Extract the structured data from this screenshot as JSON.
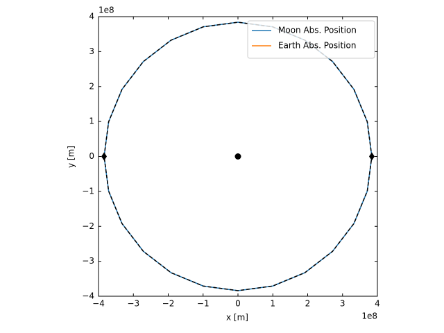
{
  "chart_data": {
    "type": "line",
    "xlabel": "x [m]",
    "ylabel": "y [m]",
    "x_offset_label": "1e8",
    "y_offset_label": "1e8",
    "xlim": [
      -4,
      4
    ],
    "ylim": [
      -4,
      4
    ],
    "xticks": [
      {
        "value": -4,
        "label": "−4"
      },
      {
        "value": -3,
        "label": "−3"
      },
      {
        "value": -2,
        "label": "−2"
      },
      {
        "value": -1,
        "label": "−1"
      },
      0,
      1,
      2,
      3,
      4
    ],
    "yticks": [
      {
        "value": -4,
        "label": "−4"
      },
      {
        "value": -3,
        "label": "−3"
      },
      {
        "value": -2,
        "label": "−2"
      },
      {
        "value": -1,
        "label": "−1"
      },
      0,
      1,
      2,
      3,
      4
    ],
    "legend": "upper right",
    "series": [
      {
        "name": "Moon Abs. Position",
        "color": "#1f77b4",
        "x": [
          3.84,
          3.709,
          3.326,
          2.715,
          1.92,
          0.994,
          0,
          -0.994,
          -1.92,
          -2.715,
          -3.326,
          -3.709,
          -3.84,
          -3.709,
          -3.326,
          -2.715,
          -1.92,
          -0.994,
          0,
          0.994,
          1.92,
          2.715,
          3.326,
          3.709,
          3.84
        ],
        "values": [
          0,
          0.994,
          1.92,
          2.715,
          3.326,
          3.709,
          3.84,
          3.709,
          3.326,
          2.715,
          1.92,
          0.994,
          0,
          -0.994,
          -1.92,
          -2.715,
          -3.326,
          -3.709,
          -3.84,
          -3.709,
          -3.326,
          -2.715,
          -1.92,
          -0.994,
          0
        ]
      },
      {
        "name": "Earth Abs. Position",
        "color": "#ff7f0e",
        "x": [
          0.047,
          0.041,
          0.024,
          0,
          -0.024,
          -0.041,
          -0.047,
          -0.041,
          -0.024,
          0,
          0.024,
          0.041,
          0.047
        ],
        "values": [
          0,
          0.024,
          0.041,
          0.047,
          0.041,
          0.024,
          0,
          -0.024,
          -0.041,
          -0.047,
          -0.041,
          -0.024,
          0
        ]
      },
      {
        "color": "#000000",
        "dashed": true,
        "x": [
          3.84,
          3.709,
          3.326,
          2.715,
          1.92,
          0.994,
          0,
          -0.994,
          -1.92,
          -2.715,
          -3.326,
          -3.709,
          -3.84,
          -3.709,
          -3.326,
          -2.715,
          -1.92,
          -0.994,
          0,
          0.994,
          1.92,
          2.715,
          3.326,
          3.709,
          3.84
        ],
        "values": [
          0,
          0.994,
          1.92,
          2.715,
          3.326,
          3.709,
          3.84,
          3.709,
          3.326,
          2.715,
          1.92,
          0.994,
          0,
          -0.994,
          -1.92,
          -2.715,
          -3.326,
          -3.709,
          -3.84,
          -3.709,
          -3.326,
          -2.715,
          -1.92,
          -0.994,
          0
        ]
      }
    ],
    "markers": [
      {
        "shape": "diamond",
        "color": "#000000",
        "x": [
          -3.84,
          3.84
        ],
        "values": [
          0,
          0
        ]
      },
      {
        "shape": "circle",
        "color": "#000000",
        "x": [
          0
        ],
        "values": [
          0
        ]
      }
    ]
  }
}
